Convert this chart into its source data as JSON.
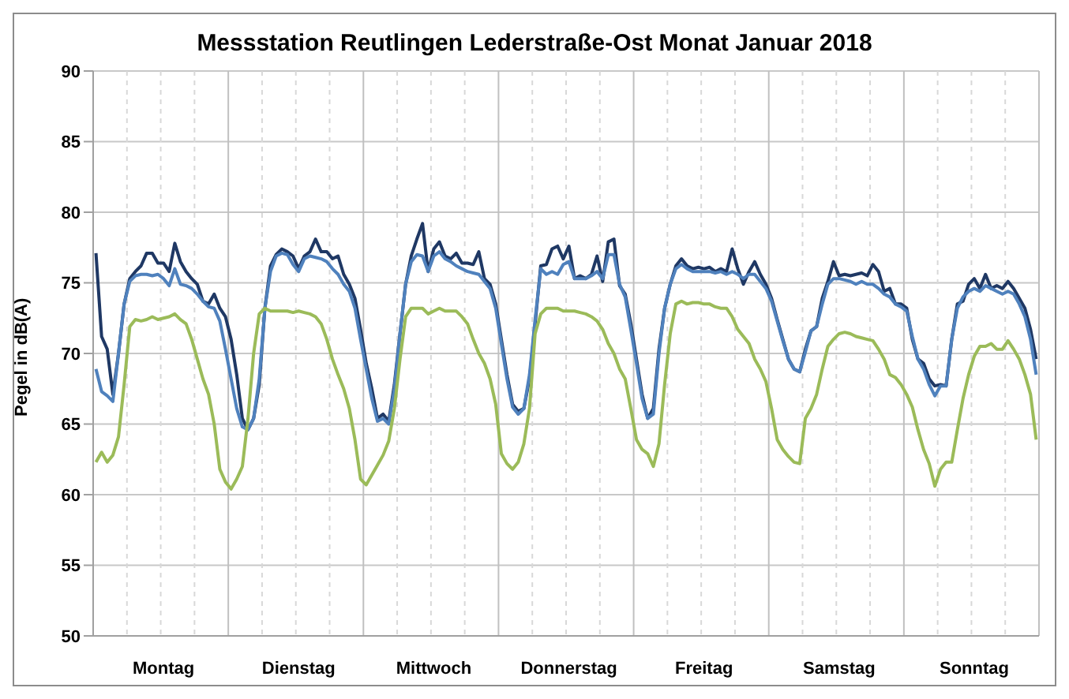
{
  "chart_data": {
    "type": "line",
    "title": "Messstation Reutlingen Lederstraße-Ost Monat Januar 2018",
    "ylabel": "Pegel in dB(A)",
    "categories": [
      null,
      null,
      null,
      null,
      null,
      null,
      null,
      null,
      null,
      null,
      null,
      null,
      "Montag",
      null,
      null,
      null,
      null,
      null,
      null,
      null,
      null,
      null,
      null,
      null,
      null,
      null,
      null,
      null,
      null,
      null,
      null,
      null,
      null,
      null,
      null,
      null,
      "Dienstag",
      null,
      null,
      null,
      null,
      null,
      null,
      null,
      null,
      null,
      null,
      null,
      null,
      null,
      null,
      null,
      null,
      null,
      null,
      null,
      null,
      null,
      null,
      null,
      "Mittwoch",
      null,
      null,
      null,
      null,
      null,
      null,
      null,
      null,
      null,
      null,
      null,
      null,
      null,
      null,
      null,
      null,
      null,
      null,
      null,
      null,
      null,
      null,
      null,
      "Donnerstag",
      null,
      null,
      null,
      null,
      null,
      null,
      null,
      null,
      null,
      null,
      null,
      null,
      null,
      null,
      null,
      null,
      null,
      null,
      null,
      null,
      null,
      null,
      null,
      "Freitag",
      null,
      null,
      null,
      null,
      null,
      null,
      null,
      null,
      null,
      null,
      null,
      null,
      null,
      null,
      null,
      null,
      null,
      null,
      null,
      null,
      null,
      null,
      null,
      "Samstag",
      null,
      null,
      null,
      null,
      null,
      null,
      null,
      null,
      null,
      null,
      null,
      null,
      null,
      null,
      null,
      null,
      null,
      null,
      null,
      null,
      null,
      null,
      null,
      "Sonntag",
      null,
      null,
      null,
      null,
      null,
      null,
      null,
      null,
      null,
      null,
      null
    ],
    "ylim": [
      50,
      90
    ],
    "yticks": [
      50,
      55,
      60,
      65,
      70,
      75,
      80,
      85,
      90
    ],
    "grid": true,
    "series": [
      {
        "color": "#1f3864",
        "values": [
          77.1,
          71.2,
          70.3,
          67.1,
          70,
          73.5,
          75.3,
          75.8,
          76.2,
          77.1,
          77.1,
          76.4,
          76.4,
          75.8,
          77.8,
          76.5,
          75.8,
          75.3,
          74.9,
          73.7,
          73.5,
          74.2,
          73.2,
          72.6,
          71,
          68.5,
          65.4,
          64.6,
          65.4,
          67.8,
          73.2,
          76.2,
          77,
          77.4,
          77.2,
          76.9,
          76,
          76.9,
          77.2,
          78.1,
          77.2,
          77.2,
          76.7,
          76.9,
          75.6,
          74.9,
          73.9,
          71.7,
          69.3,
          67.5,
          65.4,
          65.7,
          65.2,
          67.8,
          71.4,
          74.9,
          76.9,
          78.1,
          79.2,
          75.8,
          77.4,
          77.9,
          76.9,
          76.7,
          77.1,
          76.4,
          76.4,
          76.3,
          77.2,
          75.3,
          74.9,
          73.5,
          71,
          68.5,
          66.4,
          65.9,
          66.1,
          68.2,
          72.1,
          76.2,
          76.3,
          77.4,
          77.6,
          76.7,
          77.6,
          75.3,
          75.5,
          75.3,
          75.6,
          76.9,
          75.1,
          77.9,
          78.1,
          74.8,
          74.2,
          72.1,
          69.6,
          67.1,
          65.4,
          66.1,
          70.3,
          73.2,
          74.9,
          76.2,
          76.7,
          76.2,
          76,
          76.1,
          76,
          76.1,
          75.8,
          76,
          75.8,
          77.4,
          76,
          74.9,
          75.8,
          76.5,
          75.6,
          74.9,
          73.9,
          72.4,
          71,
          69.6,
          68.9,
          68.7,
          70.3,
          71.6,
          71.9,
          73.9,
          75.1,
          76.5,
          75.5,
          75.6,
          75.5,
          75.6,
          75.7,
          75.5,
          76.3,
          75.8,
          74.4,
          74.6,
          73.5,
          73.5,
          73.2,
          71,
          69.6,
          69.3,
          68.2,
          67.7,
          67.8,
          67.7,
          71,
          73.5,
          73.7,
          74.9,
          75.3,
          74.6,
          75.6,
          74.6,
          74.8,
          74.6,
          75.1,
          74.6,
          73.9,
          73.2,
          71.7,
          69.6
        ]
      },
      {
        "color": "#4f81bd",
        "values": [
          68.9,
          67.3,
          67,
          66.6,
          70,
          73.5,
          75.1,
          75.5,
          75.6,
          75.6,
          75.5,
          75.6,
          75.3,
          74.8,
          76,
          74.9,
          74.8,
          74.6,
          74.2,
          73.7,
          73.3,
          73.2,
          72.3,
          70.3,
          68.2,
          66.1,
          64.8,
          64.6,
          65.4,
          68.2,
          73.2,
          75.8,
          76.9,
          77.1,
          77,
          76.3,
          75.8,
          76.7,
          76.9,
          76.8,
          76.7,
          76.5,
          76,
          75.6,
          74.9,
          74.4,
          73.2,
          71,
          68.9,
          66.8,
          65.2,
          65.4,
          65,
          67.5,
          71.4,
          74.9,
          76.5,
          77,
          76.9,
          75.8,
          76.9,
          77.2,
          76.7,
          76.5,
          76.2,
          76,
          75.8,
          75.7,
          75.6,
          75.1,
          74.6,
          73.2,
          70.7,
          68.2,
          66.2,
          65.7,
          66.1,
          68.5,
          72.4,
          76,
          75.6,
          75.8,
          75.6,
          76.3,
          76.5,
          75.3,
          75.3,
          75.3,
          75.5,
          75.8,
          75.3,
          77,
          77,
          74.9,
          74,
          71.7,
          69.3,
          66.8,
          65.4,
          65.7,
          70,
          73.2,
          74.9,
          76,
          76.3,
          76,
          75.8,
          75.8,
          75.8,
          75.8,
          75.7,
          75.8,
          75.6,
          75.8,
          75.6,
          75.3,
          75.6,
          75.6,
          75.1,
          74.6,
          73.7,
          72.3,
          70.9,
          69.6,
          68.9,
          68.7,
          70.1,
          71.6,
          71.9,
          73.5,
          74.9,
          75.3,
          75.3,
          75.2,
          75.1,
          74.9,
          75.1,
          74.9,
          74.9,
          74.6,
          74.2,
          74,
          73.5,
          73.3,
          73,
          71.2,
          69.6,
          68.9,
          67.8,
          67,
          67.7,
          67.7,
          71,
          73.2,
          74,
          74.4,
          74.6,
          74.4,
          74.8,
          74.6,
          74.4,
          74.2,
          74.4,
          74.2,
          73.5,
          72.6,
          71,
          68.5
        ]
      },
      {
        "color": "#9bbb59",
        "values": [
          62.3,
          63,
          62.3,
          62.8,
          64.1,
          67.8,
          71.9,
          72.4,
          72.3,
          72.4,
          72.6,
          72.4,
          72.5,
          72.6,
          72.8,
          72.4,
          72.1,
          71,
          69.6,
          68.2,
          67.1,
          65,
          61.8,
          60.9,
          60.4,
          61.1,
          62,
          65.4,
          70,
          72.8,
          73.2,
          73,
          73,
          73,
          73,
          72.9,
          73,
          72.9,
          72.8,
          72.6,
          72.1,
          71,
          69.6,
          68.5,
          67.5,
          66.1,
          63.9,
          61.1,
          60.7,
          61.4,
          62.1,
          62.8,
          63.8,
          66.1,
          69.6,
          72.6,
          73.2,
          73.2,
          73.2,
          72.8,
          73,
          73.2,
          73,
          73,
          73,
          72.6,
          72.1,
          71,
          70,
          69.3,
          68.2,
          66.4,
          62.9,
          62.2,
          61.8,
          62.3,
          63.6,
          66.1,
          71.4,
          72.8,
          73.2,
          73.2,
          73.2,
          73,
          73,
          73,
          72.9,
          72.8,
          72.6,
          72.3,
          71.7,
          70.7,
          70,
          68.9,
          68.2,
          66.1,
          63.9,
          63.2,
          62.9,
          62,
          63.6,
          67.8,
          71.4,
          73.5,
          73.7,
          73.5,
          73.6,
          73.6,
          73.5,
          73.5,
          73.3,
          73.2,
          73.2,
          72.6,
          71.7,
          71.2,
          70.7,
          69.6,
          68.9,
          68,
          66.1,
          63.9,
          63.2,
          62.7,
          62.3,
          62.2,
          65.4,
          66.1,
          67.1,
          68.9,
          70.5,
          71,
          71.4,
          71.5,
          71.4,
          71.2,
          71.1,
          71,
          70.9,
          70.3,
          69.6,
          68.5,
          68.3,
          67.8,
          67.1,
          66.2,
          64.6,
          63.2,
          62.2,
          60.6,
          61.8,
          62.3,
          62.3,
          64.6,
          66.8,
          68.5,
          69.8,
          70.5,
          70.5,
          70.7,
          70.3,
          70.3,
          70.9,
          70.3,
          69.6,
          68.5,
          67.1,
          63.9
        ]
      }
    ]
  }
}
